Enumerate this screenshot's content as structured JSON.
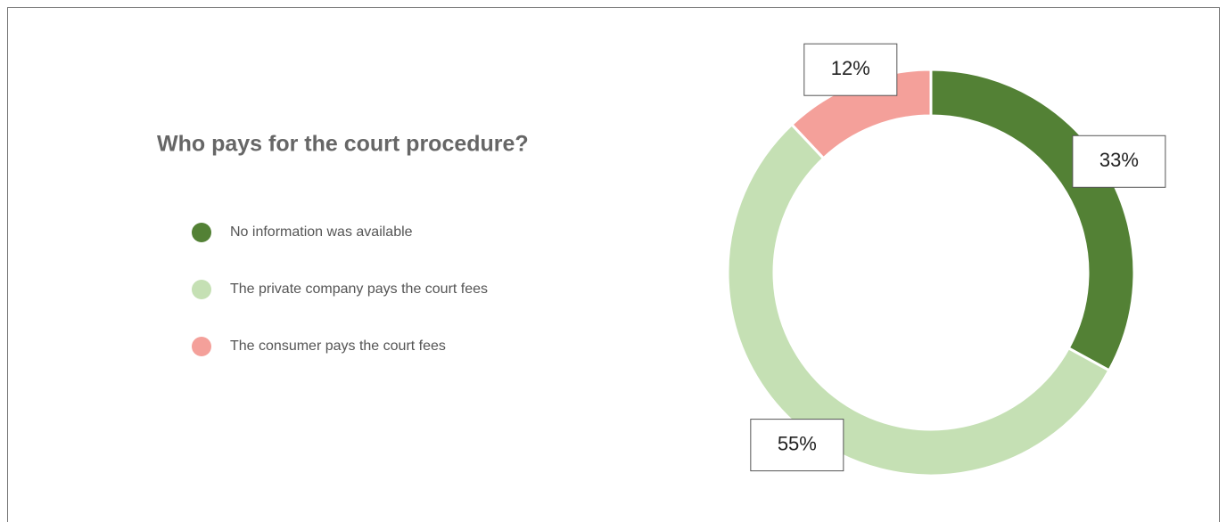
{
  "chart_data": {
    "type": "pie",
    "title": "Who pays for the court procedure?",
    "categories": [
      "No information was available",
      "The private company pays the court fees",
      "The consumer pays the court fees"
    ],
    "values": [
      33,
      55,
      12
    ],
    "value_labels": [
      "33%",
      "55%",
      "12%"
    ],
    "colors": [
      "#538135",
      "#c5e0b4",
      "#f4a09a"
    ]
  }
}
